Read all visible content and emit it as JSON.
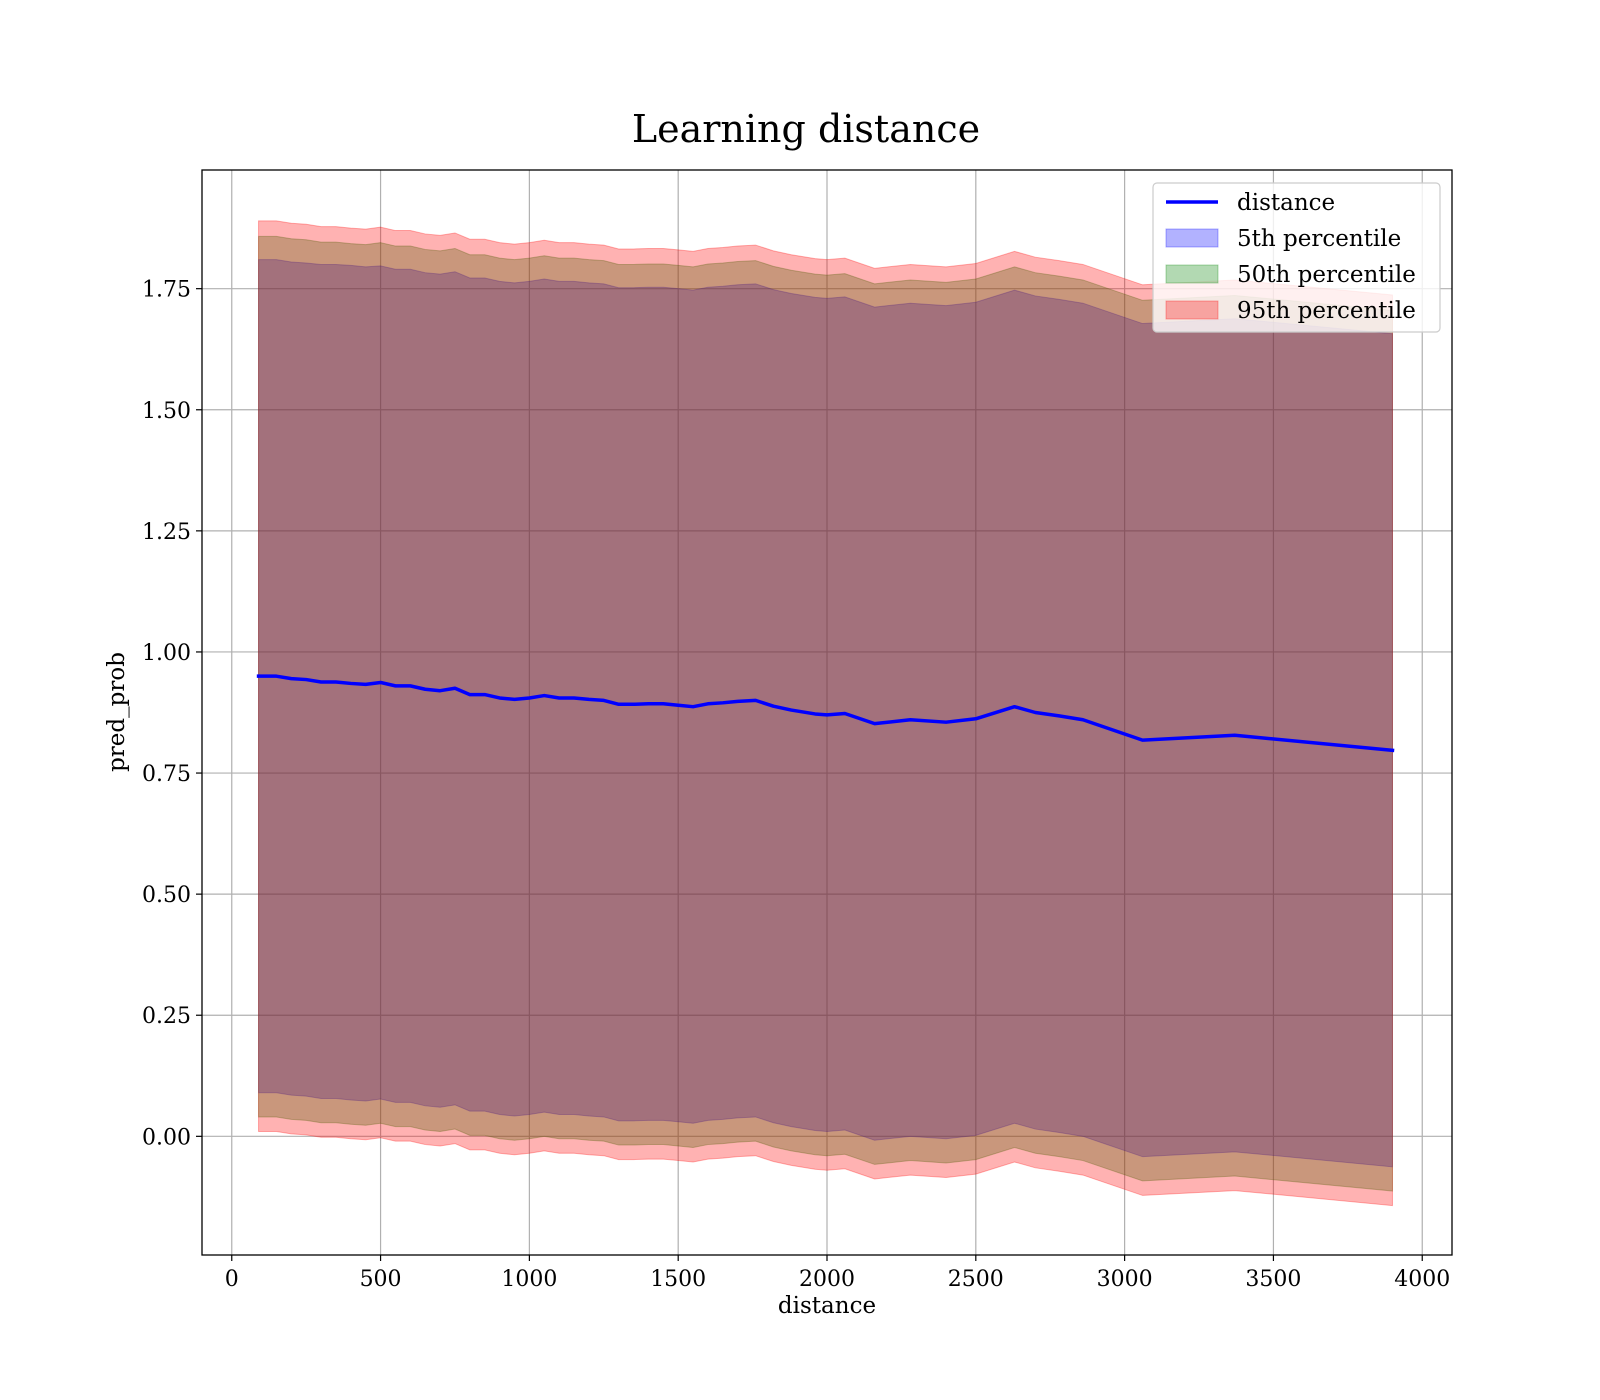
{
  "chart_data": {
    "type": "line",
    "title": "Learning distance",
    "xlabel": "distance",
    "ylabel": "pred_prob",
    "xlim": [
      -100,
      4100
    ],
    "ylim": [
      -0.245,
      1.995
    ],
    "x_ticks": [
      0,
      500,
      1000,
      1500,
      2000,
      2500,
      3000,
      3500,
      4000
    ],
    "x_tick_labels": [
      "0",
      "500",
      "1000",
      "1500",
      "2000",
      "2500",
      "3000",
      "3500",
      "4000"
    ],
    "y_ticks": [
      0.0,
      0.25,
      0.5,
      0.75,
      1.0,
      1.25,
      1.5,
      1.75
    ],
    "y_tick_labels": [
      "0.00",
      "0.25",
      "0.50",
      "0.75",
      "1.00",
      "1.25",
      "1.50",
      "1.75"
    ],
    "grid": true,
    "legend_position": "top-right",
    "x": [
      90,
      150,
      200,
      250,
      300,
      350,
      400,
      450,
      500,
      550,
      600,
      650,
      700,
      750,
      800,
      850,
      900,
      950,
      1000,
      1050,
      1100,
      1150,
      1200,
      1250,
      1300,
      1350,
      1400,
      1450,
      1500,
      1550,
      1600,
      1650,
      1700,
      1760,
      1820,
      1880,
      1960,
      2000,
      2060,
      2160,
      2280,
      2400,
      2500,
      2630,
      2700,
      2780,
      2860,
      3060,
      3370,
      3900
    ],
    "series": [
      {
        "name": "distance",
        "kind": "line",
        "color": "#0000ff",
        "values": [
          0.95,
          0.95,
          0.945,
          0.943,
          0.938,
          0.938,
          0.935,
          0.933,
          0.937,
          0.93,
          0.93,
          0.923,
          0.92,
          0.925,
          0.912,
          0.912,
          0.905,
          0.902,
          0.905,
          0.91,
          0.905,
          0.905,
          0.902,
          0.9,
          0.892,
          0.892,
          0.893,
          0.893,
          0.89,
          0.887,
          0.893,
          0.895,
          0.898,
          0.9,
          0.888,
          0.88,
          0.872,
          0.87,
          0.873,
          0.852,
          0.86,
          0.855,
          0.862,
          0.887,
          0.875,
          0.868,
          0.86,
          0.818,
          0.828,
          0.797
        ]
      },
      {
        "name": "5th percentile",
        "kind": "band",
        "color": "#0000ff",
        "opacity": 0.3,
        "upper": [
          1.81,
          1.81,
          1.805,
          1.803,
          1.8,
          1.8,
          1.798,
          1.795,
          1.797,
          1.79,
          1.79,
          1.783,
          1.78,
          1.785,
          1.772,
          1.772,
          1.765,
          1.762,
          1.765,
          1.77,
          1.765,
          1.765,
          1.762,
          1.76,
          1.752,
          1.752,
          1.753,
          1.753,
          1.75,
          1.747,
          1.753,
          1.755,
          1.758,
          1.76,
          1.748,
          1.74,
          1.732,
          1.73,
          1.733,
          1.712,
          1.72,
          1.715,
          1.722,
          1.747,
          1.735,
          1.728,
          1.72,
          1.678,
          1.688,
          1.657
        ],
        "lower": [
          0.09,
          0.09,
          0.085,
          0.083,
          0.078,
          0.078,
          0.075,
          0.073,
          0.077,
          0.07,
          0.07,
          0.063,
          0.06,
          0.065,
          0.052,
          0.052,
          0.045,
          0.042,
          0.045,
          0.05,
          0.045,
          0.045,
          0.042,
          0.04,
          0.032,
          0.032,
          0.033,
          0.033,
          0.03,
          0.027,
          0.033,
          0.035,
          0.038,
          0.04,
          0.028,
          0.02,
          0.012,
          0.01,
          0.013,
          -0.008,
          0.0,
          -0.005,
          0.002,
          0.027,
          0.015,
          0.008,
          0.0,
          -0.042,
          -0.032,
          -0.063
        ]
      },
      {
        "name": "50th percentile",
        "kind": "band",
        "color": "#008000",
        "opacity": 0.3,
        "upper": [
          1.858,
          1.858,
          1.853,
          1.851,
          1.846,
          1.846,
          1.843,
          1.841,
          1.845,
          1.838,
          1.838,
          1.831,
          1.828,
          1.833,
          1.82,
          1.82,
          1.813,
          1.81,
          1.813,
          1.818,
          1.813,
          1.813,
          1.81,
          1.808,
          1.8,
          1.8,
          1.801,
          1.801,
          1.798,
          1.795,
          1.801,
          1.803,
          1.806,
          1.808,
          1.796,
          1.788,
          1.78,
          1.778,
          1.781,
          1.76,
          1.768,
          1.763,
          1.77,
          1.795,
          1.783,
          1.776,
          1.768,
          1.726,
          1.736,
          1.705
        ],
        "lower": [
          0.04,
          0.04,
          0.035,
          0.033,
          0.028,
          0.028,
          0.025,
          0.023,
          0.027,
          0.02,
          0.02,
          0.013,
          0.01,
          0.015,
          0.002,
          0.002,
          -0.005,
          -0.008,
          -0.005,
          0.0,
          -0.005,
          -0.005,
          -0.008,
          -0.01,
          -0.018,
          -0.018,
          -0.017,
          -0.017,
          -0.02,
          -0.023,
          -0.017,
          -0.015,
          -0.012,
          -0.01,
          -0.022,
          -0.03,
          -0.038,
          -0.04,
          -0.037,
          -0.058,
          -0.05,
          -0.055,
          -0.048,
          -0.023,
          -0.035,
          -0.042,
          -0.05,
          -0.092,
          -0.082,
          -0.113
        ]
      },
      {
        "name": "95th percentile",
        "kind": "band",
        "color": "#ff0000",
        "opacity": 0.3,
        "upper": [
          1.89,
          1.89,
          1.885,
          1.883,
          1.878,
          1.878,
          1.875,
          1.873,
          1.877,
          1.87,
          1.87,
          1.863,
          1.86,
          1.865,
          1.852,
          1.852,
          1.845,
          1.842,
          1.845,
          1.85,
          1.845,
          1.845,
          1.842,
          1.84,
          1.832,
          1.832,
          1.833,
          1.833,
          1.83,
          1.827,
          1.833,
          1.835,
          1.838,
          1.84,
          1.828,
          1.82,
          1.812,
          1.81,
          1.813,
          1.792,
          1.8,
          1.795,
          1.802,
          1.827,
          1.815,
          1.808,
          1.8,
          1.758,
          1.768,
          1.737
        ],
        "lower": [
          0.01,
          0.01,
          0.005,
          0.003,
          -0.002,
          -0.002,
          -0.005,
          -0.007,
          -0.003,
          -0.01,
          -0.01,
          -0.017,
          -0.02,
          -0.015,
          -0.028,
          -0.028,
          -0.035,
          -0.038,
          -0.035,
          -0.03,
          -0.035,
          -0.035,
          -0.038,
          -0.04,
          -0.048,
          -0.048,
          -0.047,
          -0.047,
          -0.05,
          -0.053,
          -0.047,
          -0.045,
          -0.042,
          -0.04,
          -0.052,
          -0.06,
          -0.068,
          -0.07,
          -0.067,
          -0.088,
          -0.08,
          -0.085,
          -0.078,
          -0.053,
          -0.065,
          -0.072,
          -0.08,
          -0.122,
          -0.112,
          -0.143
        ]
      }
    ]
  }
}
